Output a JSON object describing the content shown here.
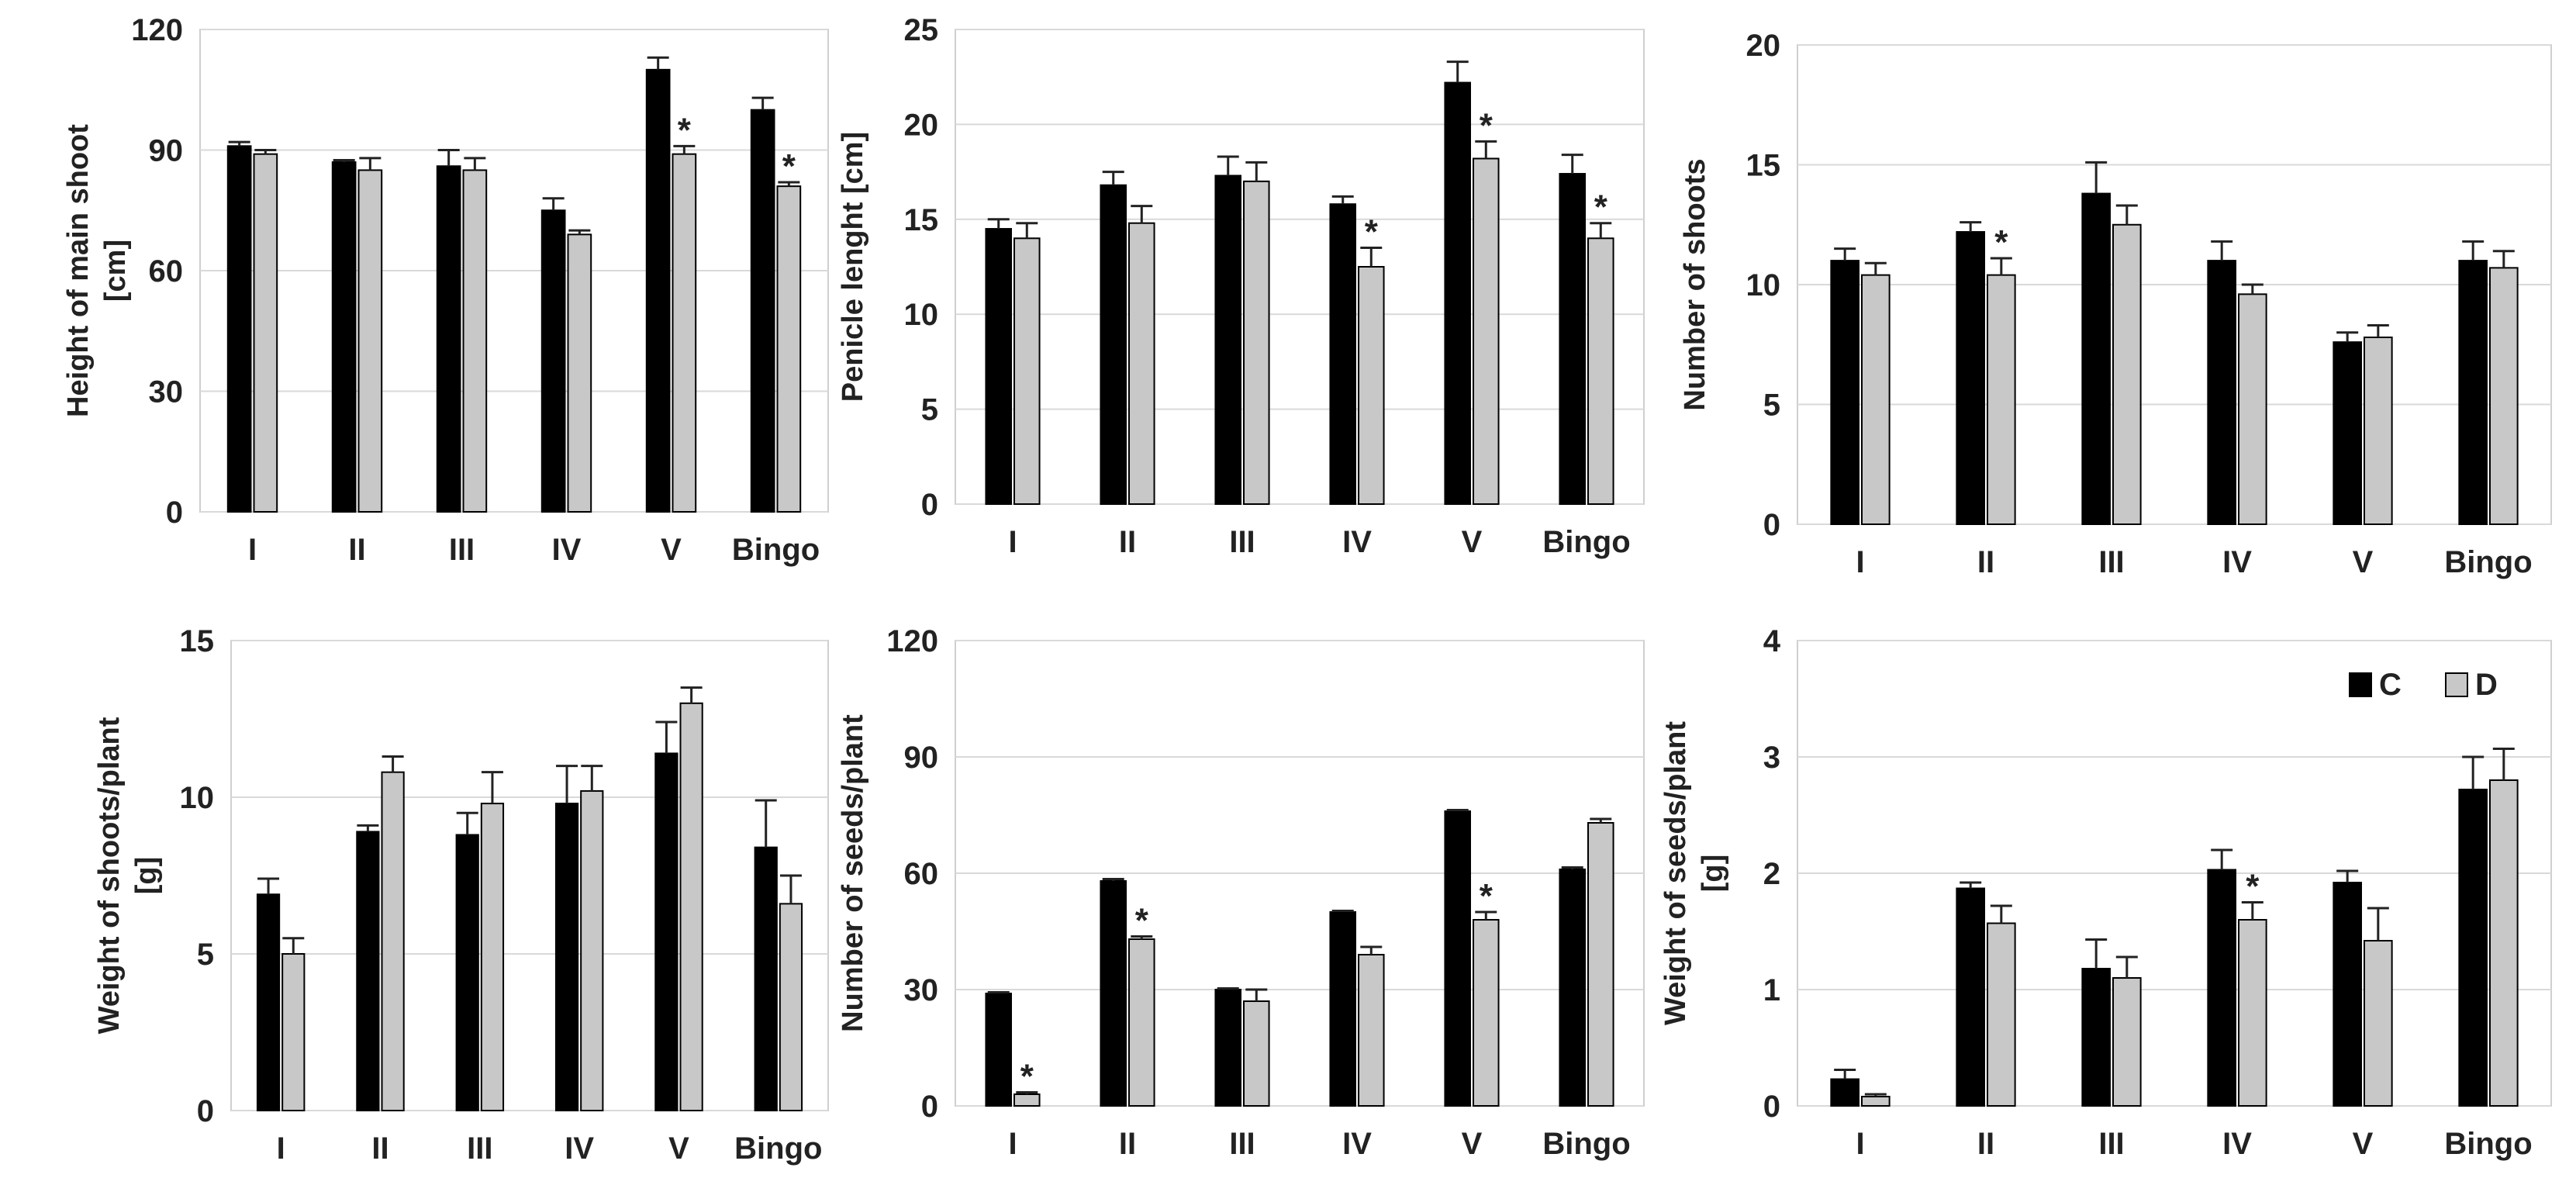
{
  "colors": {
    "C": "#000000",
    "D": "#c8c8c8",
    "grid": "#d9d9d9",
    "frame": "#cfcfcf",
    "error": "#222222"
  },
  "legend": [
    {
      "key": "C",
      "label": "C"
    },
    {
      "key": "D",
      "label": "D"
    }
  ],
  "chart_data": [
    {
      "type": "bar",
      "ylabel": [
        "Height of main shoot",
        "[cm]"
      ],
      "ylim": [
        0,
        120
      ],
      "yticks": [
        0,
        30,
        60,
        90,
        120
      ],
      "categories": [
        "I",
        "II",
        "III",
        "IV",
        "V",
        "Bingo"
      ],
      "series": [
        {
          "name": "C",
          "values": [
            91,
            87,
            86,
            75,
            110,
            100
          ],
          "errors": [
            1,
            0.5,
            4,
            3,
            3,
            3
          ]
        },
        {
          "name": "D",
          "values": [
            89,
            85,
            85,
            69,
            89,
            81
          ],
          "errors": [
            1,
            3,
            3,
            1,
            2,
            1
          ]
        }
      ],
      "significant": [
        false,
        false,
        false,
        false,
        true,
        true
      ],
      "star": "*"
    },
    {
      "type": "bar",
      "ylabel": [
        "Penicle lenght [cm]"
      ],
      "ylim": [
        0,
        25
      ],
      "yticks": [
        0,
        5,
        10,
        15,
        20,
        25
      ],
      "categories": [
        "I",
        "II",
        "III",
        "IV",
        "V",
        "Bingo"
      ],
      "series": [
        {
          "name": "C",
          "values": [
            14.5,
            16.8,
            17.3,
            15.8,
            22.2,
            17.4
          ],
          "errors": [
            0.5,
            0.7,
            1,
            0.4,
            1.1,
            1
          ]
        },
        {
          "name": "D",
          "values": [
            14.0,
            14.8,
            17.0,
            12.5,
            18.2,
            14.0
          ],
          "errors": [
            0.8,
            0.9,
            1,
            1,
            0.9,
            0.8
          ]
        }
      ],
      "significant": [
        false,
        false,
        false,
        true,
        true,
        true
      ],
      "star": "*"
    },
    {
      "type": "bar",
      "ylabel": [
        "Number of shoots"
      ],
      "ylim": [
        0,
        20
      ],
      "yticks": [
        0,
        5,
        10,
        15,
        20
      ],
      "categories": [
        "I",
        "II",
        "III",
        "IV",
        "V",
        "Bingo"
      ],
      "series": [
        {
          "name": "C",
          "values": [
            11.0,
            12.2,
            13.8,
            11.0,
            7.6,
            11.0
          ],
          "errors": [
            0.5,
            0.4,
            1.3,
            0.8,
            0.4,
            0.8
          ]
        },
        {
          "name": "D",
          "values": [
            10.4,
            10.4,
            12.5,
            9.6,
            7.8,
            10.7
          ],
          "errors": [
            0.5,
            0.7,
            0.8,
            0.4,
            0.5,
            0.7
          ]
        }
      ],
      "significant": [
        false,
        true,
        false,
        false,
        false,
        false
      ],
      "star": "*"
    },
    {
      "type": "bar",
      "ylabel": [
        "Weight of shoots/plant",
        "[g]"
      ],
      "ylim": [
        0,
        15
      ],
      "yticks": [
        0,
        5,
        10,
        15
      ],
      "categories": [
        "I",
        "II",
        "III",
        "IV",
        "V",
        "Bingo"
      ],
      "series": [
        {
          "name": "C",
          "values": [
            6.9,
            8.9,
            8.8,
            9.8,
            11.4,
            8.4
          ],
          "errors": [
            0.5,
            0.2,
            0.7,
            1.2,
            1.0,
            1.5
          ]
        },
        {
          "name": "D",
          "values": [
            5.0,
            10.8,
            9.8,
            10.2,
            13.0,
            6.6
          ],
          "errors": [
            0.5,
            0.5,
            1.0,
            0.8,
            0.5,
            0.9
          ]
        }
      ],
      "significant": [
        false,
        false,
        false,
        false,
        false,
        false
      ],
      "star": "*"
    },
    {
      "type": "bar",
      "ylabel": [
        "Number of seeds/plant"
      ],
      "ylim": [
        0,
        120
      ],
      "yticks": [
        0,
        30,
        60,
        90,
        120
      ],
      "categories": [
        "I",
        "II",
        "III",
        "IV",
        "V",
        "Bingo"
      ],
      "series": [
        {
          "name": "C",
          "values": [
            29,
            58,
            30,
            50,
            76,
            61
          ],
          "errors": [
            0.3,
            0.5,
            0.3,
            0.3,
            0.3,
            0.5
          ]
        },
        {
          "name": "D",
          "values": [
            3,
            43,
            27,
            39,
            48,
            73
          ],
          "errors": [
            0.5,
            0.7,
            3,
            2,
            2,
            1
          ]
        }
      ],
      "significant": [
        true,
        true,
        false,
        false,
        true,
        false
      ],
      "star": "*"
    },
    {
      "type": "bar",
      "ylabel": [
        "Weight of seeds/plant",
        "[g]"
      ],
      "ylim": [
        0,
        4
      ],
      "yticks": [
        0,
        1,
        2,
        3,
        4
      ],
      "categories": [
        "I",
        "II",
        "III",
        "IV",
        "V",
        "Bingo"
      ],
      "series": [
        {
          "name": "C",
          "values": [
            0.23,
            1.87,
            1.18,
            2.03,
            1.92,
            2.72
          ],
          "errors": [
            0.08,
            0.05,
            0.25,
            0.17,
            0.1,
            0.28
          ]
        },
        {
          "name": "D",
          "values": [
            0.08,
            1.57,
            1.1,
            1.6,
            1.42,
            2.8
          ],
          "errors": [
            0.02,
            0.15,
            0.18,
            0.15,
            0.28,
            0.27
          ]
        }
      ],
      "significant": [
        false,
        false,
        false,
        true,
        false,
        false
      ],
      "star": "*",
      "legend": "top-right"
    }
  ]
}
